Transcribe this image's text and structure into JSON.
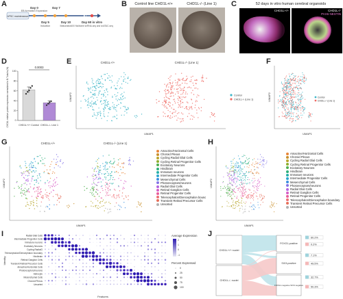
{
  "panels": {
    "A": {
      "label": "A",
      "steps": [
        {
          "day": "Day 0",
          "desc": "EB formation Expansion"
        },
        {
          "day": "Day 7",
          "desc": ""
        },
        {
          "day": "Day 5",
          "desc": "Induction"
        },
        {
          "day": "Day 10",
          "desc": "Maturation"
        }
      ],
      "start": "hPSC maintenance",
      "end_day": "Day 60 in vitro",
      "end_desc": "10X Multiome snRNA-seq and snATAC-seq"
    },
    "B": {
      "label": "B",
      "left_title": "Control line CHD1L+/+",
      "right_title": "CHD1L-/- (Line 1)"
    },
    "C": {
      "label": "C",
      "title": "52 days in vitro human cerebral organoids",
      "left_tag": "CHD1L+/+",
      "right_tag": "CHD1L-/-",
      "stains": "PAX6 NESTIN"
    },
    "D": {
      "label": "D",
      "ylabel": "CHD1L relative protein expression normalized to B-Tubulin (%)",
      "pvalue": "0.0003",
      "categories": [
        "CHD1L+/+ Control",
        "CHD1L-/- Line 1"
      ]
    },
    "E": {
      "label": "E",
      "left_title": "CHD1L+/+",
      "right_title": "CHD1L-/- (Line 1)",
      "xlabel": "UMAP1",
      "ylabel": "UMAP2",
      "legend": [
        "Control",
        "CHD1L-/- (Line 1)"
      ]
    },
    "F": {
      "label": "F",
      "xlabel": "UMAP1",
      "ylabel": "UMAP2",
      "legend": [
        "Control",
        "CHD1L-/- (Line 1)"
      ]
    },
    "G": {
      "label": "G",
      "left_title": "CHD1L+/+",
      "right_title": "CHD1L-/- (Line 1)",
      "xlabel": "UMAP1",
      "ylabel": "UMAP2"
    },
    "H": {
      "label": "H",
      "xlabel": "UMAP1",
      "ylabel": "UMAP2"
    },
    "I": {
      "label": "I",
      "ylabel": "Identity",
      "xlabel": "Features",
      "legend_expr": "Average Expression",
      "legend_pct": "Percent Expressed",
      "expr_ticks": [
        "2",
        "1",
        "0",
        "-1"
      ],
      "pct_ticks": [
        "0",
        "25",
        "50",
        "75",
        "100"
      ],
      "rows": [
        "Radial Glial Cells",
        "Intermediate Progenitor Cells",
        "Immature neurons",
        "Excitatory Neurons",
        "Cycling RadialG",
        "Telencephalon/Diencephalon boundary",
        "Hindbrain",
        "Retinal Ganglion Cells",
        "Transient Retinal Precursor Cells",
        "Amacrine/Horizontal Cells",
        "Photoreceptors/neurons",
        "Astrocyte",
        "Mesenchymal Cells",
        "Choroid Plexus",
        "Unsorted"
      ]
    },
    "J": {
      "label": "J",
      "left_top": "CHD1L+/+ nuclei",
      "left_bottom": "CHD1L-/- nuclei",
      "right_groups": [
        "FOXG1-positive",
        "SIX3-positive",
        "FOXG1-negative SIX3-negative"
      ],
      "pcts": [
        {
          "value": "60.2%",
          "color": "#9fd3dc"
        },
        {
          "value": "0.2%",
          "color": "#f4b8b8"
        },
        {
          "value": "7.1%",
          "color": "#9fd3dc"
        },
        {
          "value": "49.5%",
          "color": "#f4b8b8"
        },
        {
          "value": "32.7%",
          "color": "#9fd3dc"
        },
        {
          "value": "50.3%",
          "color": "#f4b8b8"
        }
      ]
    }
  },
  "cell_types": [
    {
      "name": "Amacrine/Horizontal Cells",
      "color": "#e8873a"
    },
    {
      "name": "Choroid Plexus",
      "color": "#c98f2a"
    },
    {
      "name": "Cycling Radial Glial Cells",
      "color": "#b9a72e"
    },
    {
      "name": "Cycling Retinal Progenitor Cells",
      "color": "#8fae2e"
    },
    {
      "name": "Excitatory Neurons",
      "color": "#4fb04f"
    },
    {
      "name": "Hindbrain",
      "color": "#2fb07a"
    },
    {
      "name": "Immature neurons",
      "color": "#25b0a8"
    },
    {
      "name": "Intermediate Progenitor Cells",
      "color": "#2ca6cf"
    },
    {
      "name": "Mesenchymal Cells",
      "color": "#3c8fe0"
    },
    {
      "name": "Photoreceptors/neurons",
      "color": "#8474e6"
    },
    {
      "name": "Radial Glial Cells",
      "color": "#b364e0"
    },
    {
      "name": "Retinal Ganglion Cells",
      "color": "#d75cc6"
    },
    {
      "name": "Retinal Progenitor Cells",
      "color": "#e85c9a"
    },
    {
      "name": "Telencephalon/Diencephalon boundary",
      "color": "#ee6d74"
    },
    {
      "name": "Transient Retinal Precursor Cells",
      "color": "#e66f5a"
    },
    {
      "name": "Unsorted",
      "color": "#b0b0b0"
    }
  ],
  "chart_data": [
    {
      "type": "bar",
      "panel": "D",
      "categories": [
        "CHD1L+/+ Control",
        "CHD1L-/- Line 1"
      ],
      "values": [
        62,
        36
      ],
      "errors": [
        6,
        4
      ],
      "points": [
        [
          54,
          58,
          61,
          66,
          70
        ],
        [
          31,
          34,
          37,
          39
        ]
      ],
      "ylim": [
        0,
        100
      ],
      "yticks": [
        0,
        20,
        40,
        60,
        80,
        100
      ],
      "ylabel": "CHD1L relative protein expression normalized to B-Tubulin (%)",
      "annotation": "0.0003",
      "colors": [
        "#d9d9d9",
        "#b08ad6"
      ]
    }
  ]
}
